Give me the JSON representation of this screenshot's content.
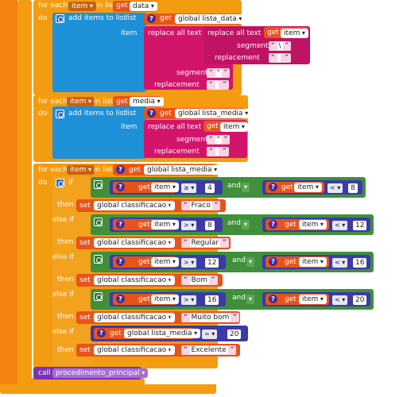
{
  "colors": {
    "control": "#f39c12",
    "variable_get": "#e8531a",
    "list": "#1e90d8",
    "text": "#d2156b",
    "logic": "#3f8f3b",
    "math": "#3c3aa8",
    "procedure": "#7b33b3"
  },
  "loop1": {
    "for_each": "for each",
    "var": "item",
    "in_list": "in list",
    "get": "get",
    "list_var": "data",
    "do": "do",
    "add": "add items to list",
    "list": "list",
    "help": "?",
    "get2": "get",
    "target": "global lista_data",
    "item_lbl": "item",
    "replace_all": "replace all text",
    "inner_replace": "replace all text",
    "inner_get": "get",
    "inner_var": "item",
    "segment": "segment",
    "seg_val": "\\",
    "replacement": "replacement",
    "rep_val": "",
    "segment2": "segment",
    "seg2_val": "\"",
    "replacement2": "replacement",
    "rep2_val": ""
  },
  "loop2": {
    "for_each": "for each",
    "var": "item",
    "in_list": "in list",
    "get": "get",
    "list_var": "media",
    "do": "do",
    "add": "add items to list",
    "list": "list",
    "help": "?",
    "get2": "get",
    "target": "global lista_media",
    "item_lbl": "item",
    "replace_all": "replace all text",
    "get3": "get",
    "item_var": "item",
    "segment": "segment",
    "seg_val": "\"",
    "replacement": "replacement",
    "rep_val": ""
  },
  "loop3": {
    "for_each": "for each",
    "var": "item",
    "in_list": "in list",
    "help": "?",
    "get": "get",
    "list_var": "global lista_media",
    "do": "do",
    "if": "if",
    "c1": {
      "get_a": "get",
      "var_a": "item",
      "op_a": "≥",
      "n_a": "4",
      "and": "and",
      "get_b": "get",
      "var_b": "item",
      "op_b": "<",
      "n_b": "8"
    },
    "then1": "then",
    "set1": "set",
    "set1_var": "global classificacao",
    "to1": "to",
    "val1": "Fraco",
    "elseif1": "else if",
    "c2": {
      "get_a": "get",
      "var_a": "item",
      "op_a": ">",
      "n_a": "8",
      "and": "and",
      "get_b": "get",
      "var_b": "item",
      "op_b": "<",
      "n_b": "12"
    },
    "then2": "then",
    "set2": "set",
    "set2_var": "global classificacao",
    "to2": "to",
    "val2": "Regular",
    "elseif2": "else if",
    "c3": {
      "get_a": "get",
      "var_a": "item",
      "op_a": ">",
      "n_a": "12",
      "and": "and",
      "get_b": "get",
      "var_b": "item",
      "op_b": "<",
      "n_b": "16"
    },
    "then3": "then",
    "set3": "set",
    "set3_var": "global classificacao",
    "to3": "to",
    "val3": "Bom",
    "elseif3": "else if",
    "c4": {
      "get_a": "get",
      "var_a": "item",
      "op_a": ">",
      "n_a": "16",
      "and": "and",
      "get_b": "get",
      "var_b": "item",
      "op_b": "<",
      "n_b": "20"
    },
    "then4": "then",
    "set4": "set",
    "set4_var": "global classificacao",
    "to4": "to",
    "val4": "Muito bom",
    "elseif4": "else if",
    "c5": {
      "get": "get",
      "var": "global lista_media",
      "op": "=",
      "n": "20"
    },
    "then5": "then",
    "set5": "set",
    "set5_var": "global classificacao",
    "to5": "to",
    "val5": "Excelente"
  },
  "call": {
    "label": "call",
    "proc": "procedimento_principal"
  }
}
